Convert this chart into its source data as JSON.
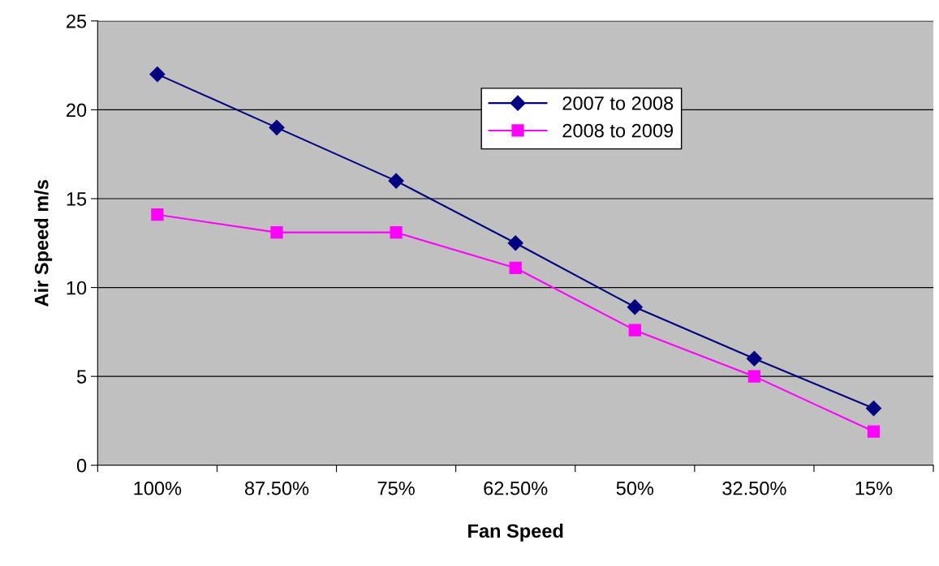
{
  "chart_data": {
    "type": "line",
    "xlabel": "Fan Speed",
    "ylabel": "Air Speed m/s",
    "categories": [
      "100%",
      "87.50%",
      "75%",
      "62.50%",
      "50%",
      "32.50%",
      "15%"
    ],
    "series": [
      {
        "name": "2007 to 2008",
        "color": "#000080",
        "marker": "diamond",
        "values": [
          22,
          19,
          16,
          12.5,
          8.9,
          6,
          3.2
        ]
      },
      {
        "name": "2008 to 2009",
        "color": "#ff00ff",
        "marker": "square",
        "values": [
          14.1,
          13.1,
          13.1,
          11.1,
          7.6,
          5,
          1.9
        ]
      }
    ],
    "ylim": [
      0,
      25
    ],
    "yticks": [
      0,
      5,
      10,
      15,
      20,
      25
    ],
    "grid": "y",
    "legend": "top right",
    "line_style": "solid"
  }
}
